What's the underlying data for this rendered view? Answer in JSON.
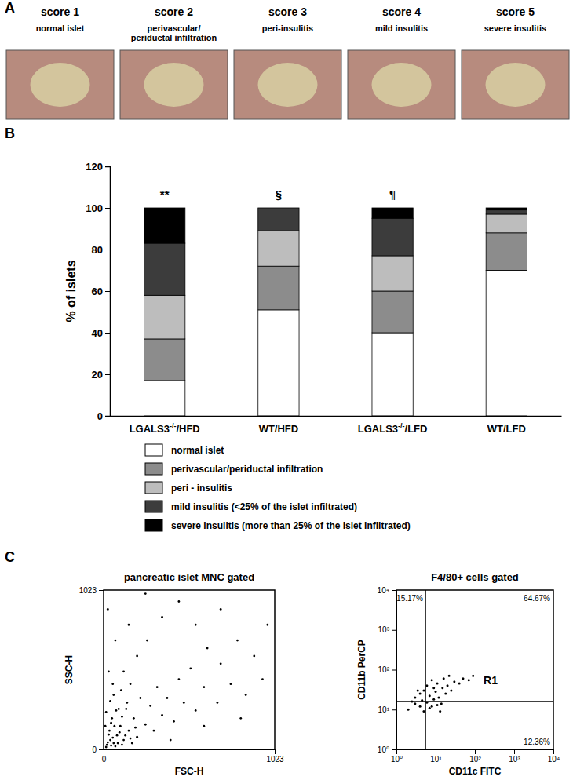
{
  "panel_labels": [
    "A",
    "B",
    "C"
  ],
  "panel_a": [
    {
      "score": "score 1",
      "label": [
        "normal islet"
      ]
    },
    {
      "score": "score 2",
      "label": [
        "perivascular/",
        "periductal infiltration"
      ]
    },
    {
      "score": "score 3",
      "label": [
        "peri-insulitis"
      ]
    },
    {
      "score": "score 4",
      "label": [
        "mild insulitis"
      ]
    },
    {
      "score": "score 5",
      "label": [
        "severe insulitis"
      ]
    }
  ],
  "chart_data": [
    {
      "type": "bar",
      "stacked": true,
      "legend": "bottom",
      "y_label": "% of islets",
      "categories": [
        "LGALS3-/-/HFD",
        "WT/HFD",
        "LGALS3-/-/LFD",
        "WT/LFD"
      ],
      "annotations": [
        "**",
        "§",
        "¶",
        null
      ],
      "series": [
        {
          "name": "normal islet",
          "color": "#ffffff",
          "values": [
            17,
            51,
            40,
            70
          ]
        },
        {
          "name": "perivascular/periductal infiltration",
          "color": "#8c8c8c",
          "values": [
            20,
            21,
            20,
            18
          ]
        },
        {
          "name": "peri - insulitis",
          "color": "#bdbdbd",
          "values": [
            21,
            17,
            17,
            9
          ]
        },
        {
          "name": "mild insulitis (<25% of the islet infiltrated)",
          "color": "#3c3c3c",
          "values": [
            25,
            11,
            18,
            2
          ]
        },
        {
          "name": "severe insulitis (more than 25% of the islet infiltrated)",
          "color": "#000000",
          "values": [
            17,
            0,
            5,
            1
          ]
        }
      ],
      "ylim": [
        0,
        120
      ],
      "yticks": [
        0,
        20,
        40,
        60,
        80,
        100,
        120
      ]
    },
    {
      "type": "scatter",
      "title": "pancreatic islet MNC gated",
      "x_label": "FSC-H",
      "y_label": "SSC-H",
      "color": "#000000",
      "marker": "dot",
      "xlim": [
        0,
        1023
      ],
      "ylim": [
        0,
        1023
      ],
      "xticks": [
        0,
        1023
      ],
      "yticks": [
        0,
        1023
      ],
      "x": [
        20,
        40,
        35,
        60,
        80,
        50,
        100,
        120,
        90,
        150,
        140,
        180,
        200,
        60,
        220,
        250,
        160,
        280,
        300,
        120,
        320,
        350,
        200,
        380,
        420,
        260,
        450,
        480,
        150,
        520,
        550,
        350,
        600,
        620,
        680,
        450,
        700,
        760,
        250,
        800,
        850,
        550,
        900,
        950,
        700,
        980,
        30,
        70,
        10,
        25,
        110,
        170,
        400,
        600,
        820,
        15,
        25,
        45,
        55,
        70,
        30,
        85,
        95,
        65,
        45,
        130,
        110,
        75,
        15,
        40,
        160,
        105,
        55,
        190,
        135
      ],
      "values": [
        30,
        60,
        120,
        40,
        90,
        200,
        150,
        60,
        260,
        120,
        300,
        200,
        80,
        350,
        330,
        160,
        420,
        280,
        120,
        500,
        400,
        220,
        600,
        330,
        180,
        700,
        450,
        300,
        800,
        520,
        250,
        850,
        400,
        650,
        300,
        950,
        550,
        420,
        1000,
        700,
        350,
        800,
        600,
        450,
        900,
        800,
        500,
        700,
        150,
        900,
        30,
        40,
        60,
        150,
        200,
        15,
        45,
        25,
        75,
        20,
        95,
        40,
        110,
        150,
        170,
        90,
        210,
        250,
        240,
        310,
        70,
        380,
        420,
        140,
        260
      ]
    },
    {
      "type": "scatter",
      "title": "F4/80+ cells gated",
      "log": true,
      "x_label": "CD11c FITC",
      "y_label": "CD11b PerCP",
      "color": "#000000",
      "marker": "dot",
      "xlim": [
        1,
        10000
      ],
      "ylim": [
        1,
        10000
      ],
      "xticks": [
        {
          "value": 1,
          "label": "10⁰"
        },
        {
          "value": 10,
          "label": "10¹"
        },
        {
          "value": 100,
          "label": "10²"
        },
        {
          "value": 1000,
          "label": "10³"
        },
        {
          "value": 10000,
          "label": "10⁴"
        }
      ],
      "yticks": [
        {
          "value": 1,
          "label": "10⁰"
        },
        {
          "value": 10,
          "label": "10¹"
        },
        {
          "value": 100,
          "label": "10²"
        },
        {
          "value": 1000,
          "label": "10³"
        },
        {
          "value": 10000,
          "label": "10⁴"
        }
      ],
      "gate_x": 5.5,
      "gate_y": 16,
      "quadrant_labels": [
        "15.17%",
        "64.67%",
        "12.36%"
      ],
      "region_label": "R1",
      "x": [
        2,
        3,
        4,
        3,
        5,
        6,
        4,
        7,
        5,
        8,
        9,
        10,
        6,
        12,
        15,
        11,
        14,
        18,
        20,
        25,
        8,
        16,
        22,
        30,
        40,
        50,
        70,
        90,
        2.5,
        3.5,
        7,
        13,
        4.5,
        9,
        11
      ],
      "values": [
        10,
        14,
        12,
        20,
        9,
        15,
        25,
        22,
        30,
        12,
        18,
        28,
        40,
        20,
        35,
        45,
        14,
        25,
        40,
        30,
        55,
        60,
        70,
        50,
        45,
        60,
        55,
        70,
        16,
        30,
        11,
        9,
        17,
        35,
        13
      ]
    }
  ]
}
